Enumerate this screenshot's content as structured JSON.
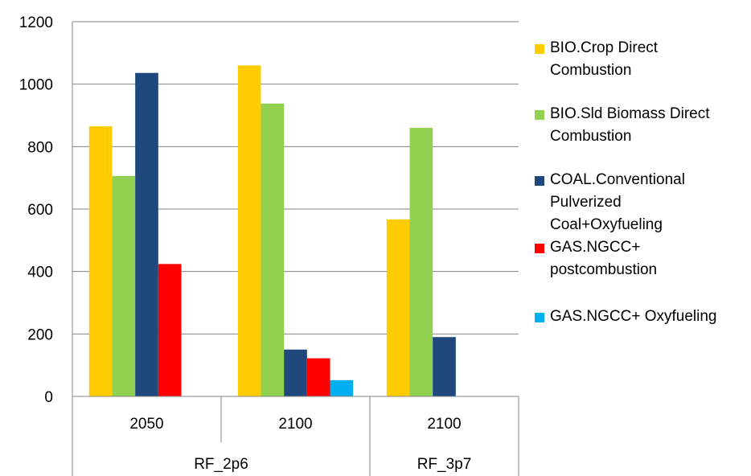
{
  "chart_data": {
    "type": "bar",
    "groups": [
      {
        "name": "RF_2p6",
        "categories": [
          "2050",
          "2100"
        ]
      },
      {
        "name": "RF_3p7",
        "categories": [
          "2100"
        ]
      }
    ],
    "categories": [
      "2050",
      "2100",
      "2100"
    ],
    "series": [
      {
        "name": "BIO.Crop Direct Combustion",
        "label_lines": [
          "BIO.Crop Direct",
          "Combustion"
        ],
        "color": "#ffcc00",
        "values": [
          865,
          1060,
          567
        ]
      },
      {
        "name": "BIO.Sld Biomass Direct Combustion",
        "label_lines": [
          "BIO.Sld Biomass Direct",
          "Combustion"
        ],
        "color": "#92d050",
        "values": [
          706,
          938,
          860
        ]
      },
      {
        "name": "COAL.Conventional Pulverized Coal+Oxyfueling",
        "label_lines": [
          "COAL.Conventional",
          "Pulverized",
          "Coal+Oxyfueling"
        ],
        "color": "#1f497d",
        "values": [
          1036,
          150,
          190
        ]
      },
      {
        "name": "GAS.NGCC+ postcombustion",
        "label_lines": [
          "GAS.NGCC+",
          "postcombustion"
        ],
        "color": "#ff0000",
        "values": [
          424,
          122,
          0
        ]
      },
      {
        "name": "GAS.NGCC+ Oxyfueling",
        "label_lines": [
          "GAS.NGCC+ Oxyfueling"
        ],
        "color": "#00b0f0",
        "values": [
          0,
          52,
          0
        ]
      }
    ],
    "ylim": [
      0,
      1200
    ],
    "yticks": [
      0,
      200,
      400,
      600,
      800,
      1000,
      1200
    ],
    "ytick_labels": [
      "0",
      "200",
      "400",
      "600",
      "800",
      "1000",
      "1200"
    ],
    "grid": true,
    "legend": "right",
    "title": "",
    "xlabel": "",
    "ylabel": ""
  }
}
